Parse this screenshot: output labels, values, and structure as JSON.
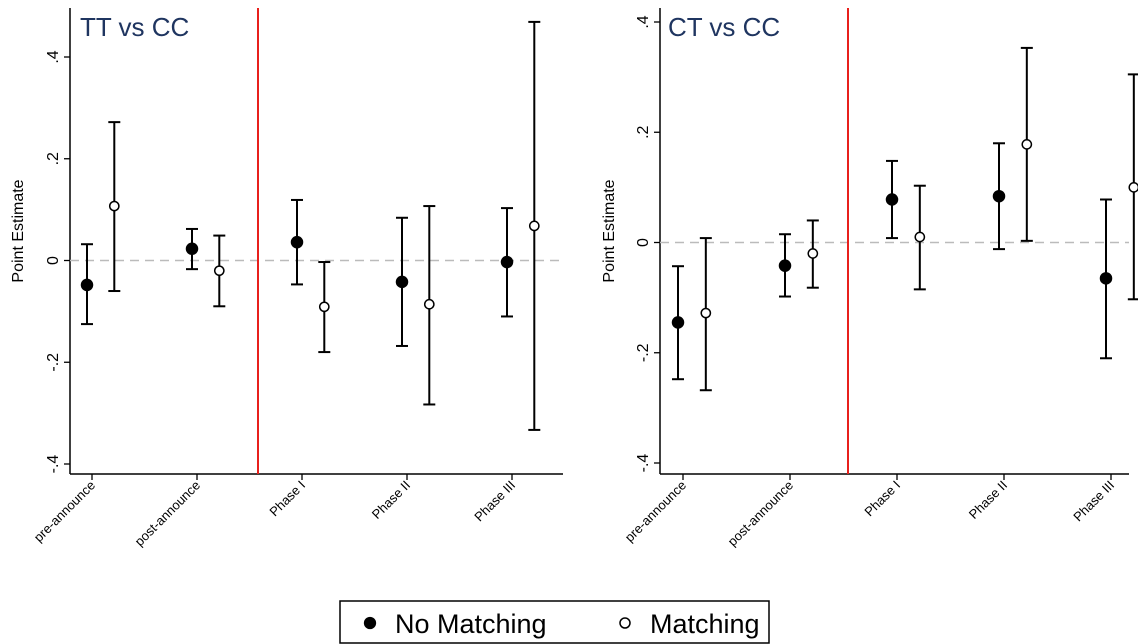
{
  "colors": {
    "axis": "#000000",
    "zero_line": "#bbbbbb",
    "divider": "#e8201c",
    "title": "#1f3560",
    "marker_filled": "#000000",
    "marker_open": "#ffffff"
  },
  "legend": {
    "no_matching": "No Matching",
    "matching": "Matching"
  },
  "chart_data": [
    {
      "type": "scatter",
      "title": "TT vs CC",
      "ylabel": "Point Estimate",
      "xlabel": "",
      "categories": [
        "pre-announce",
        "post-announce",
        "Phase I",
        "Phase II",
        "Phase III"
      ],
      "ylim": [
        -0.4,
        0.4
      ],
      "yticks": [
        -0.4,
        -0.2,
        0,
        0.2,
        0.4
      ],
      "ytick_labels": [
        "-.4",
        "-.2",
        "0",
        ".2",
        ".4"
      ],
      "zero_reference_line": true,
      "divider_between": [
        "post-announce",
        "Phase I"
      ],
      "series": [
        {
          "name": "No Matching",
          "marker": "filled",
          "values": [
            -0.048,
            0.023,
            0.036,
            -0.042,
            -0.003
          ],
          "ci_low": [
            -0.125,
            -0.017,
            -0.047,
            -0.168,
            -0.11
          ],
          "ci_high": [
            0.032,
            0.062,
            0.119,
            0.084,
            0.103
          ]
        },
        {
          "name": "Matching",
          "marker": "open",
          "values": [
            0.107,
            -0.02,
            -0.091,
            -0.086,
            0.068
          ],
          "ci_low": [
            -0.06,
            -0.09,
            -0.18,
            -0.283,
            -0.333
          ],
          "ci_high": [
            0.272,
            0.049,
            -0.003,
            0.107,
            0.469
          ]
        }
      ]
    },
    {
      "type": "scatter",
      "title": "CT vs CC",
      "ylabel": "Point Estimate",
      "xlabel": "",
      "categories": [
        "pre-announce",
        "post-announce",
        "Phase I",
        "Phase II",
        "Phase III"
      ],
      "ylim": [
        -0.4,
        0.4
      ],
      "yticks": [
        -0.4,
        -0.2,
        0,
        0.2,
        0.4
      ],
      "ytick_labels": [
        "-.4",
        "-.2",
        "0",
        ".2",
        ".4"
      ],
      "zero_reference_line": true,
      "divider_between": [
        "post-announce",
        "Phase I"
      ],
      "series": [
        {
          "name": "No Matching",
          "marker": "filled",
          "values": [
            -0.145,
            -0.042,
            0.078,
            0.084,
            -0.065
          ],
          "ci_low": [
            -0.248,
            -0.098,
            0.008,
            -0.012,
            -0.21
          ],
          "ci_high": [
            -0.043,
            0.015,
            0.148,
            0.18,
            0.078
          ]
        },
        {
          "name": "Matching",
          "marker": "open",
          "values": [
            -0.128,
            -0.02,
            0.01,
            0.178,
            0.1
          ],
          "ci_low": [
            -0.268,
            -0.082,
            -0.085,
            0.003,
            -0.103
          ],
          "ci_high": [
            0.008,
            0.04,
            0.103,
            0.353,
            0.305
          ]
        }
      ]
    }
  ]
}
